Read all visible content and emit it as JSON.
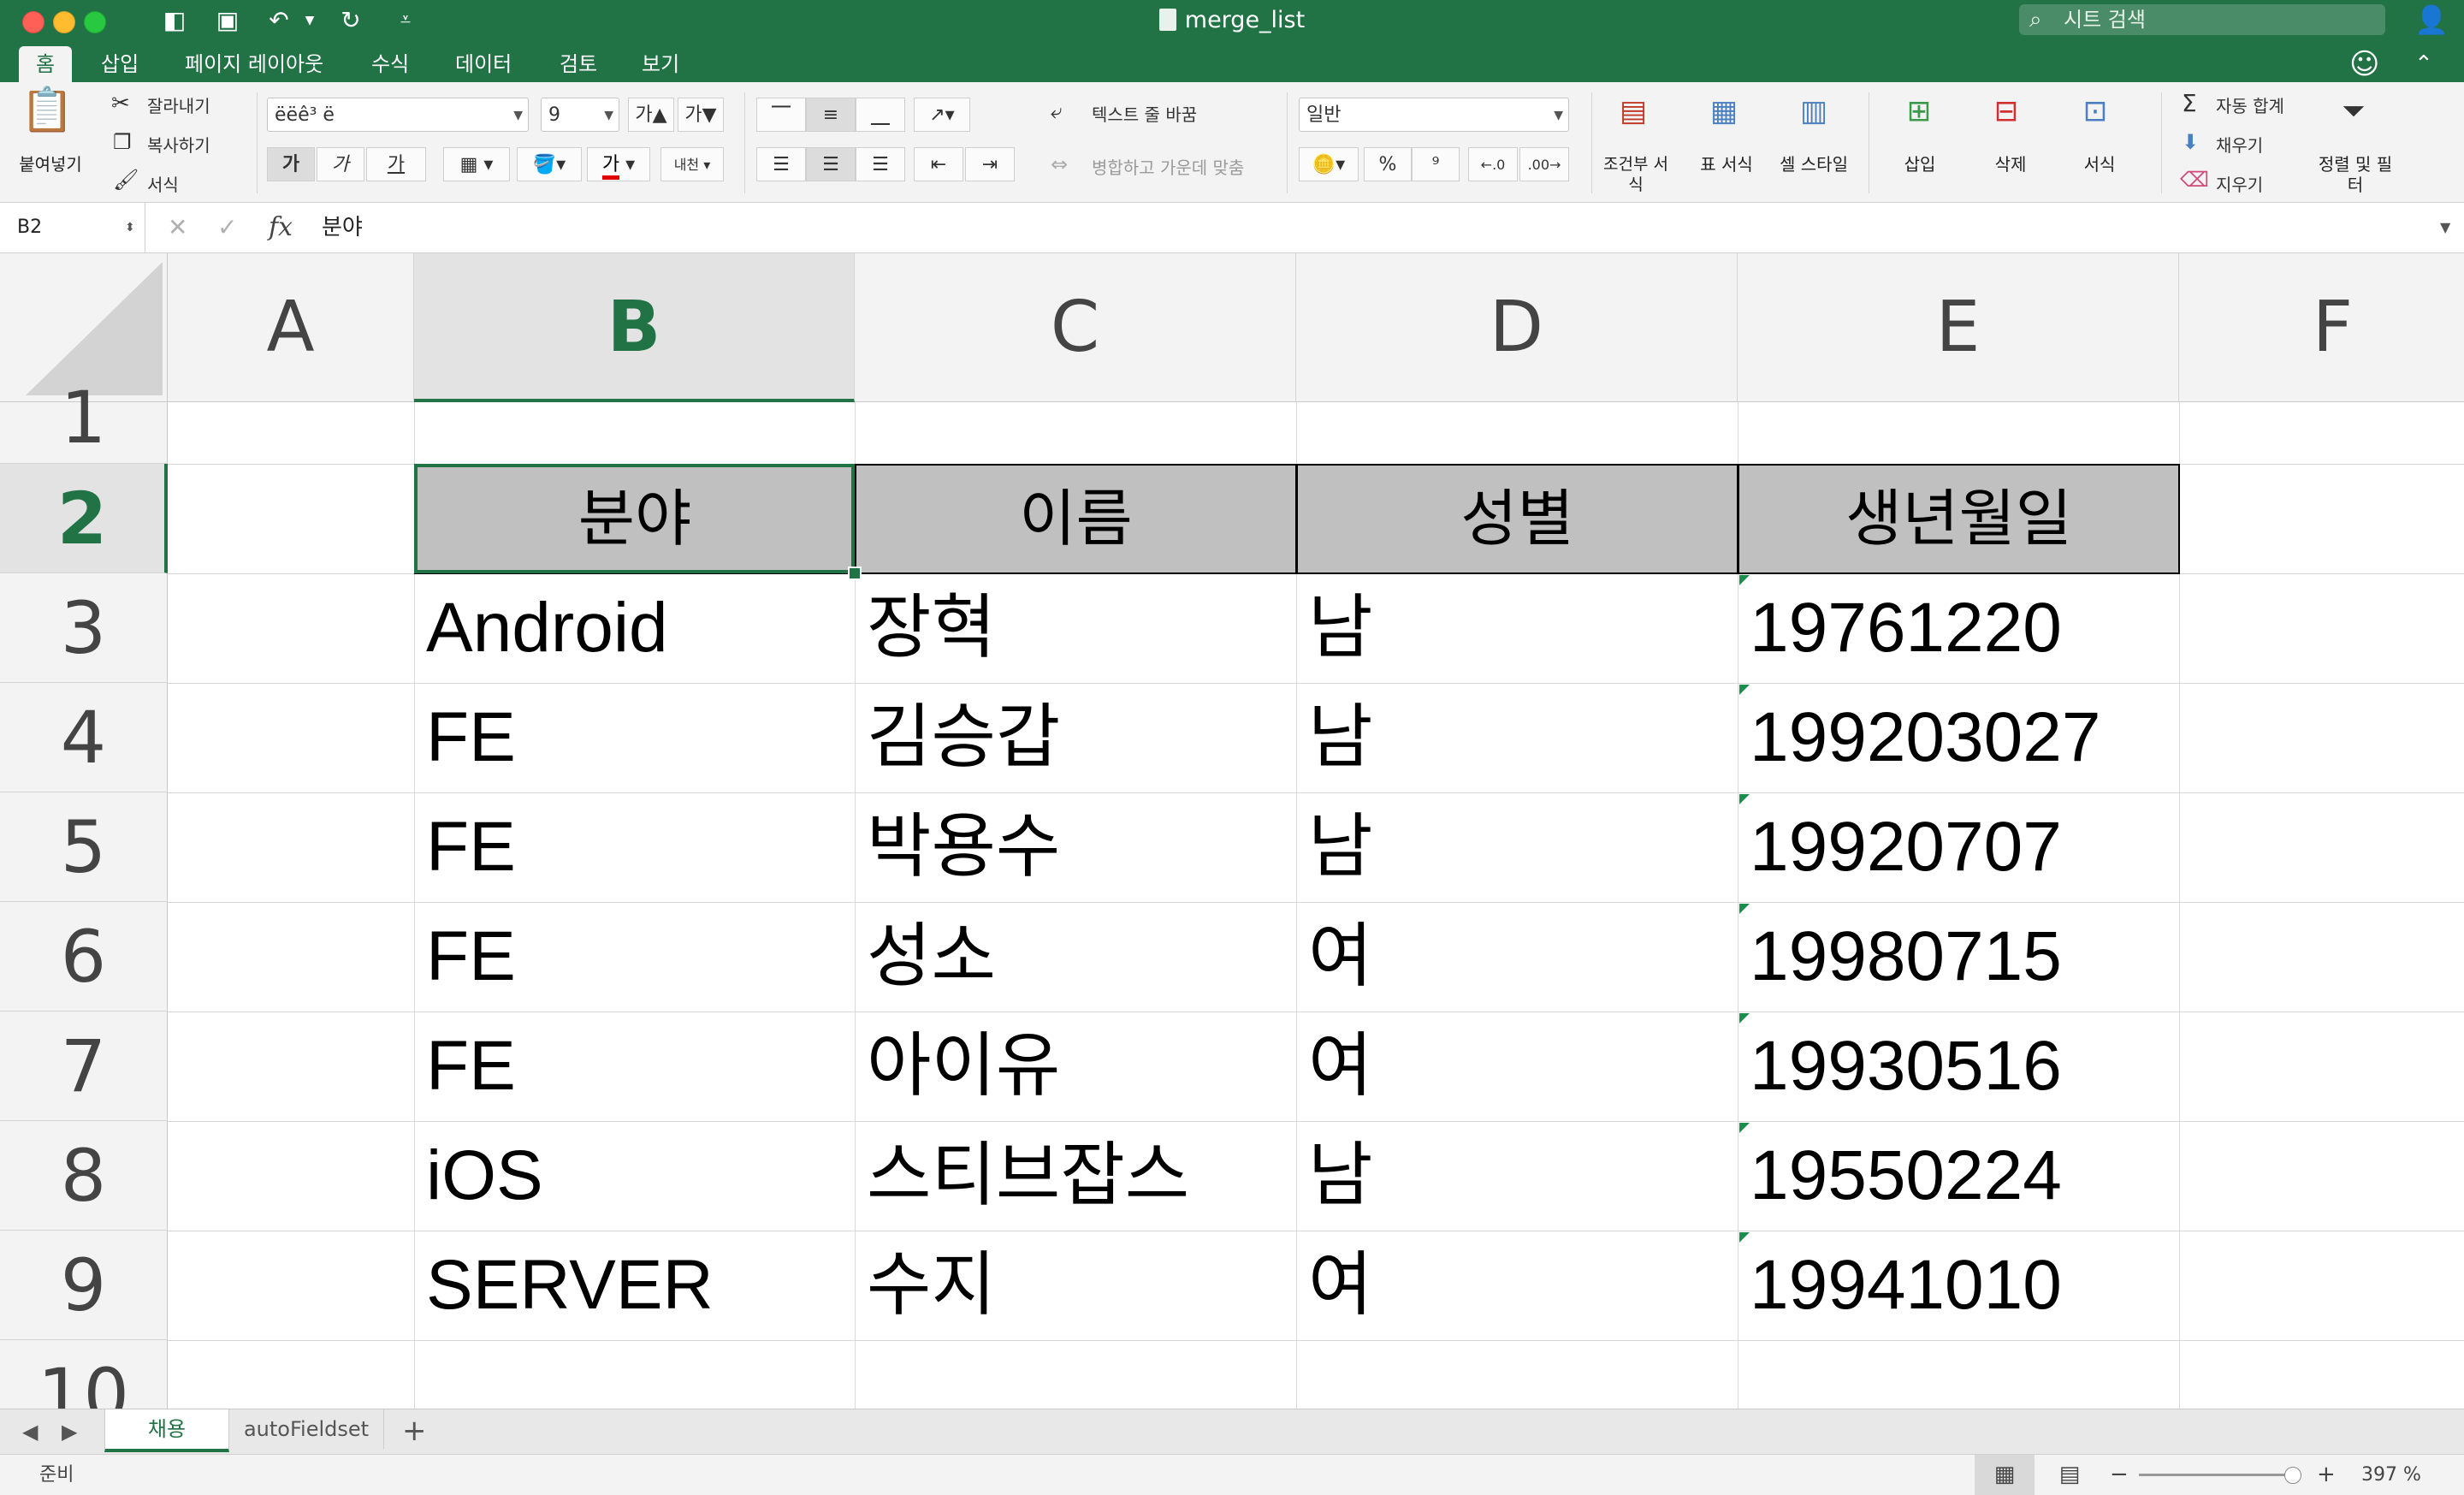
{
  "window": {
    "title": "merge_list",
    "search_placeholder": "시트 검색"
  },
  "tabs": [
    "홈",
    "삽입",
    "페이지 레이아웃",
    "수식",
    "데이터",
    "검토",
    "보기"
  ],
  "ribbon": {
    "clipboard": {
      "paste": "붙여넣기",
      "cut": "잘라내기",
      "copy": "복사하기",
      "format_painter": "서식"
    },
    "font": {
      "name": "ëëê³ ë",
      "size": "9",
      "bold": "가",
      "italic": "가",
      "underline": "가",
      "font_color_glyph": "가",
      "phonetic": "내천"
    },
    "alignment": {
      "wrap_text": "텍스트 줄 바꿈",
      "merge_center": "병합하고 가운데 맞춤"
    },
    "number": {
      "format": "일반",
      "percent": "%",
      "comma": "9"
    },
    "styles": {
      "conditional": "조건부 서식",
      "table": "표 서식",
      "cell": "셀 스타일"
    },
    "cells": {
      "insert": "삽입",
      "delete": "삭제",
      "format": "서식"
    },
    "editing": {
      "autosum": "자동 합계",
      "fill": "채우기",
      "clear": "지우기",
      "sort_filter": "정렬 및 필터"
    }
  },
  "formula_bar": {
    "name_box": "B2",
    "formula": "분야"
  },
  "grid": {
    "columns": [
      "A",
      "B",
      "C",
      "D",
      "E",
      "F"
    ],
    "rows": [
      "1",
      "2",
      "3",
      "4",
      "5",
      "6",
      "7",
      "8",
      "9",
      "10"
    ],
    "headers": [
      "분야",
      "이름",
      "성별",
      "생년월일"
    ],
    "data": [
      [
        "Android",
        "장혁",
        "남",
        "19761220"
      ],
      [
        "FE",
        "김승갑",
        "남",
        "199203027"
      ],
      [
        "FE",
        "박용수",
        "남",
        "19920707"
      ],
      [
        "FE",
        "성소",
        "여",
        "19980715"
      ],
      [
        "FE",
        "아이유",
        "여",
        "19930516"
      ],
      [
        "iOS",
        "스티브잡스",
        "남",
        "19550224"
      ],
      [
        "SERVER",
        "수지",
        "여",
        "19941010"
      ]
    ]
  },
  "sheets": [
    "채용",
    "autoFieldset"
  ],
  "status": {
    "text": "준비",
    "zoom": "397 %"
  },
  "colors": {
    "accent": "#217346",
    "header_fill": "#c0c0c0"
  }
}
